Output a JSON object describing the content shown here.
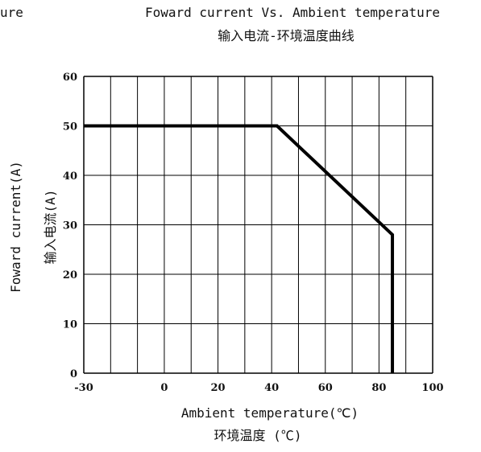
{
  "chart_data": {
    "type": "line",
    "partial_title": "ure",
    "title": "Foward current Vs. Ambient temperature",
    "subtitle": "输入电流-环境温度曲线",
    "xlabel": "Ambient temperature(℃)",
    "xlabel_secondary": "环境温度 (℃)",
    "ylabel": "Foward current(A)",
    "ylabel_secondary": "输入电流(A)",
    "xlim": [
      -30,
      100
    ],
    "ylim": [
      0,
      60
    ],
    "x_ticks": [
      -30,
      0,
      20,
      40,
      60,
      80,
      100
    ],
    "y_ticks": [
      0,
      10,
      20,
      30,
      40,
      50,
      60
    ],
    "x_tick_labels": [
      "-30",
      "0",
      "20",
      "40",
      "60",
      "80",
      "100"
    ],
    "y_tick_labels": [
      "0",
      "10",
      "20",
      "30",
      "40",
      "50",
      "60"
    ],
    "x_grid": [
      -30,
      -20,
      -10,
      0,
      10,
      20,
      30,
      40,
      50,
      60,
      70,
      80,
      90,
      100
    ],
    "y_grid": [
      0,
      10,
      20,
      30,
      40,
      50,
      60
    ],
    "grid": true,
    "series": [
      {
        "x": [
          -30,
          42,
          85,
          85
        ],
        "y": [
          50,
          50,
          28,
          0
        ]
      }
    ]
  },
  "colors": {
    "line": "#000000",
    "grid": "#000000",
    "text": "#111111"
  }
}
